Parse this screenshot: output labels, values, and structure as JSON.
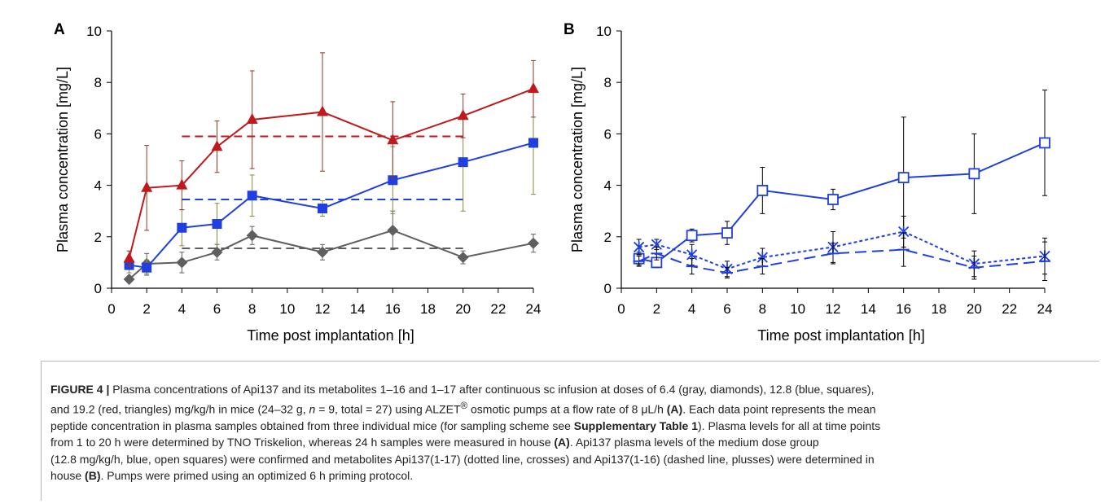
{
  "chart_data": [
    {
      "panel_label": "A",
      "type": "line",
      "ylabel": "Plasma concentration [mg/L]",
      "xlabel": "Time post implantation [h]",
      "xlim": [
        0,
        24
      ],
      "ylim": [
        0,
        10
      ],
      "xticks": [
        0,
        2,
        4,
        6,
        8,
        10,
        12,
        14,
        16,
        18,
        20,
        22,
        24
      ],
      "yticks": [
        0,
        2,
        4,
        6,
        8,
        10
      ],
      "x": [
        1,
        2,
        4,
        6,
        8,
        12,
        16,
        20,
        24
      ],
      "series": [
        {
          "marker": "diamond",
          "color": "#5f5f5f",
          "line": "solid",
          "values": [
            0.35,
            0.95,
            1.0,
            1.4,
            2.05,
            1.4,
            2.25,
            1.2,
            1.75
          ],
          "errors": [
            0.1,
            0.4,
            0.4,
            0.3,
            0.35,
            0.3,
            0.75,
            0.25,
            0.35
          ],
          "mean_line": {
            "x": [
              4,
              20
            ],
            "y": 1.55
          }
        },
        {
          "marker": "square",
          "color": "#1f3fe0",
          "line": "solid",
          "values": [
            0.9,
            0.8,
            2.35,
            2.5,
            3.6,
            3.1,
            4.2,
            4.9,
            5.65
          ],
          "errors": [
            0.3,
            0.3,
            0.7,
            0.8,
            0.8,
            0.3,
            1.3,
            1.9,
            2.0
          ],
          "mean_line": {
            "x": [
              4,
              20
            ],
            "y": 3.45
          }
        },
        {
          "marker": "triangle",
          "color": "#c0191c",
          "line": "solid",
          "values": [
            1.15,
            3.9,
            4.0,
            5.5,
            6.55,
            6.85,
            5.75,
            6.7,
            7.75
          ],
          "errors": [
            0.3,
            1.65,
            0.95,
            1.0,
            1.9,
            2.3,
            1.5,
            0.85,
            1.1
          ],
          "mean_line": {
            "x": [
              4,
              20
            ],
            "y": 5.9
          }
        }
      ]
    },
    {
      "panel_label": "B",
      "type": "line",
      "ylabel": "Plasma concentration [mg/L]",
      "xlabel": "Time post implantation [h]",
      "xlim": [
        0,
        24
      ],
      "ylim": [
        0,
        10
      ],
      "xticks": [
        0,
        2,
        4,
        6,
        8,
        10,
        12,
        14,
        16,
        18,
        20,
        22,
        24
      ],
      "yticks": [
        0,
        2,
        4,
        6,
        8,
        10
      ],
      "x": [
        1,
        2,
        4,
        6,
        8,
        12,
        16,
        20,
        24
      ],
      "series": [
        {
          "marker": "open-square",
          "color": "#1f3fe0",
          "line": "solid",
          "values": [
            1.15,
            1.0,
            2.05,
            2.15,
            3.8,
            3.45,
            4.3,
            4.45,
            5.65
          ],
          "errors": [
            0.25,
            0.2,
            0.25,
            0.45,
            0.9,
            0.4,
            2.35,
            1.55,
            2.05
          ]
        },
        {
          "marker": "cross",
          "color": "#1f3fe0",
          "line": "dotted",
          "values": [
            1.6,
            1.7,
            1.3,
            0.75,
            1.2,
            1.6,
            2.2,
            0.95,
            1.25
          ],
          "errors": [
            0.3,
            0.2,
            0.4,
            0.3,
            0.35,
            0.6,
            0.6,
            0.5,
            0.7
          ]
        },
        {
          "marker": "plus",
          "color": "#1f3fe0",
          "line": "dashed",
          "values": [
            1.05,
            1.35,
            0.85,
            0.6,
            0.85,
            1.35,
            1.5,
            0.8,
            1.05
          ],
          "errors": [
            0.2,
            0.25,
            0.3,
            0.2,
            0.3,
            0.4,
            0.65,
            0.45,
            0.75
          ]
        }
      ]
    }
  ],
  "caption": {
    "figure_label": "FIGURE 4 |",
    "line1": " Plasma concentrations of Api137 and its metabolites 1–16 and 1–17 after continuous sc infusion at doses of 6.4 (gray, diamonds), 12.8 (blue, squares),",
    "line2a": "and 19.2 (red, triangles) mg/kg/h in mice (24–32 g, ",
    "n_italic": "n",
    "line2b": " = 9, total = 27) using ALZET",
    "registered": "®",
    "line2c": " osmotic pumps at a flow rate of 8 μL/h ",
    "ref_A1": "(A)",
    "line2d": ". Each data point represents the mean",
    "line3a": "peptide concentration in plasma samples obtained from three individual mice (for sampling scheme see ",
    "supp_table": "Supplementary Table 1",
    "line3b": "). Plasma levels for all at time points",
    "line4a": "from 1 to 20 h were determined by TNO Triskelion, whereas 24 h samples were measured in house ",
    "ref_A2": "(A)",
    "line4b": ". Api137 plasma levels of the medium dose group",
    "line5": "(12.8 mg/kg/h, blue, open squares) were confirmed and metabolites Api137(1-17) (dotted line, crosses) and Api137(1-16) (dashed line, plusses) were determined in",
    "line6a": "house ",
    "ref_B": "(B)",
    "line6b": ". Pumps were primed using an optimized 6 h priming protocol."
  }
}
